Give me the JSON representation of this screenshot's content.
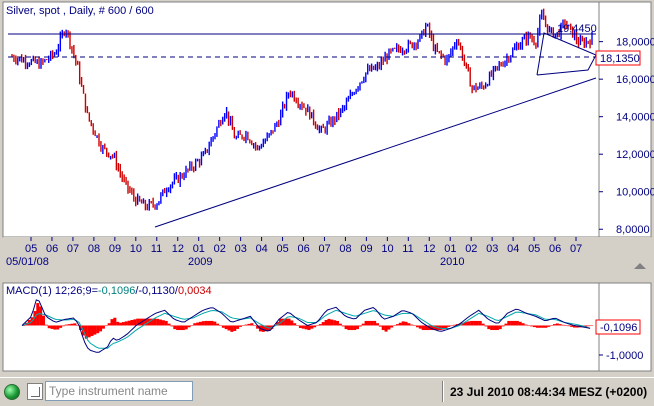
{
  "chart_data": [
    {
      "type": "line",
      "title": "Silver, spot , Daily, # 600 / 600",
      "series": [
        {
          "x": [
            "2008-05-01",
            "2008-05-20",
            "2008-06-10",
            "2008-07-01",
            "2008-07-15",
            "2008-08-01",
            "2008-08-15",
            "2008-09-05",
            "2008-09-20",
            "2008-10-05",
            "2008-10-20",
            "2008-11-05",
            "2008-11-20",
            "2008-12-05",
            "2008-12-20",
            "2009-01-10",
            "2009-01-25",
            "2009-02-10",
            "2009-02-24",
            "2009-03-10",
            "2009-03-25",
            "2009-04-10",
            "2009-04-25",
            "2009-05-10",
            "2009-05-25",
            "2009-06-05",
            "2009-06-20",
            "2009-07-08",
            "2009-07-25",
            "2009-08-10",
            "2009-08-25",
            "2009-09-10",
            "2009-09-25",
            "2009-10-10",
            "2009-10-25",
            "2009-11-10",
            "2009-11-25",
            "2009-12-03",
            "2009-12-15",
            "2010-01-01",
            "2010-01-15",
            "2010-02-05",
            "2010-02-20",
            "2010-03-10",
            "2010-03-25",
            "2010-04-10",
            "2010-04-25",
            "2010-05-05",
            "2010-05-13",
            "2010-05-25",
            "2010-06-05",
            "2010-06-15",
            "2010-06-25",
            "2010-07-05",
            "2010-07-15",
            "2010-07-23"
          ],
          "values": [
            17.2,
            17.0,
            16.8,
            17.4,
            18.8,
            16.6,
            14.0,
            12.3,
            11.9,
            10.5,
            9.6,
            9.2,
            9.4,
            10.3,
            10.7,
            11.4,
            11.9,
            13.2,
            14.4,
            12.8,
            13.1,
            12.3,
            12.9,
            13.8,
            15.4,
            14.9,
            14.3,
            13.2,
            13.8,
            14.5,
            15.5,
            16.4,
            16.6,
            17.3,
            17.6,
            17.8,
            18.2,
            18.9,
            17.5,
            17.0,
            18.2,
            15.5,
            15.6,
            16.5,
            17.1,
            17.8,
            18.3,
            18.0,
            19.4,
            18.5,
            18.4,
            19.0,
            18.5,
            17.9,
            18.0,
            18.135
          ]
        }
      ],
      "y_axis_labels": [
        "18,0000",
        "16,0000",
        "14,0000",
        "12,0000",
        "10,0000",
        "8,0000"
      ],
      "ylim": [
        7.8,
        19.9
      ],
      "x_month_labels": [
        "05",
        "06",
        "07",
        "08",
        "09",
        "10",
        "11",
        "12",
        "01",
        "02",
        "03",
        "04",
        "05",
        "06",
        "07",
        "08",
        "09",
        "10",
        "11",
        "12",
        "01",
        "02",
        "03",
        "04",
        "05",
        "06",
        "07"
      ],
      "x_year_labels": [
        "05/01/08",
        "2009",
        "2010"
      ],
      "annotations": {
        "high": "19,4450",
        "last": "18,1350"
      }
    },
    {
      "type": "line",
      "title": "MACD(1) 12;26;9=-0,1096/-0,1130/0,0034",
      "title_parts": [
        "MACD(1) 12;26;9=",
        "-0,1096",
        "/",
        "-0,1130",
        "/",
        "0,0034"
      ],
      "y_axis_labels": [
        "-1,0000"
      ],
      "ylim": [
        -1.4,
        1.3
      ],
      "last_value": "-0,1096",
      "macd_x": [
        0,
        10,
        16,
        25,
        35,
        45,
        55,
        60,
        65,
        70,
        80,
        90,
        95,
        100,
        110,
        120,
        130,
        140,
        150,
        160,
        170,
        180,
        190,
        200,
        210,
        220,
        230,
        240,
        250,
        260,
        270,
        280,
        290,
        300,
        310,
        320,
        330,
        340,
        350,
        360,
        370,
        380,
        390,
        400,
        410,
        420,
        430,
        440,
        450,
        460,
        470,
        480,
        490,
        500,
        510,
        520,
        530,
        540,
        550,
        560,
        570,
        580,
        590,
        599
      ],
      "macd": [
        0,
        0.3,
        0.95,
        0.3,
        0.1,
        0.2,
        0.25,
        0.0,
        -0.5,
        -0.8,
        -0.9,
        -0.7,
        -0.4,
        -0.5,
        -0.3,
        0.0,
        0.2,
        0.4,
        0.5,
        0.2,
        0.1,
        0.3,
        0.5,
        0.6,
        0.4,
        0.1,
        0.2,
        0.3,
        -0.1,
        -0.2,
        0.2,
        0.45,
        0.2,
        0.0,
        0.1,
        0.5,
        0.6,
        0.3,
        0.2,
        0.5,
        0.6,
        0.2,
        0.3,
        0.5,
        0.4,
        0.1,
        -0.1,
        -0.2,
        -0.1,
        0.05,
        0.3,
        0.5,
        0.2,
        0.05,
        0.4,
        0.55,
        0.4,
        0.3,
        0.15,
        0.25,
        0.1,
        0.0,
        -0.05,
        -0.11
      ],
      "signal": [
        0,
        0.1,
        0.4,
        0.35,
        0.2,
        0.18,
        0.2,
        0.1,
        -0.2,
        -0.55,
        -0.75,
        -0.75,
        -0.6,
        -0.55,
        -0.4,
        -0.15,
        0.05,
        0.25,
        0.4,
        0.3,
        0.2,
        0.25,
        0.4,
        0.5,
        0.45,
        0.25,
        0.2,
        0.25,
        0.05,
        -0.1,
        0.05,
        0.3,
        0.25,
        0.1,
        0.1,
        0.35,
        0.5,
        0.4,
        0.3,
        0.4,
        0.5,
        0.35,
        0.3,
        0.4,
        0.4,
        0.2,
        0.0,
        -0.1,
        -0.1,
        0.0,
        0.2,
        0.4,
        0.3,
        0.15,
        0.3,
        0.45,
        0.4,
        0.35,
        0.2,
        0.2,
        0.1,
        0.05,
        -0.02,
        -0.113
      ]
    }
  ],
  "statusbar": {
    "input_placeholder": "Type instrument name",
    "clock": "23 Jul 2010 08:44:34  MESZ (+0200)"
  },
  "colors": {
    "background": "#d4d0c8",
    "chart_bg": "#ffffff",
    "axis_text": "#000080",
    "trendline": "#000080",
    "price_up": "#0000ff",
    "price_down": "#cc0000",
    "macd": "#000080",
    "signal": "#00aaaa",
    "histogram": "#ff0000",
    "highlight_box": "#ff0000"
  }
}
